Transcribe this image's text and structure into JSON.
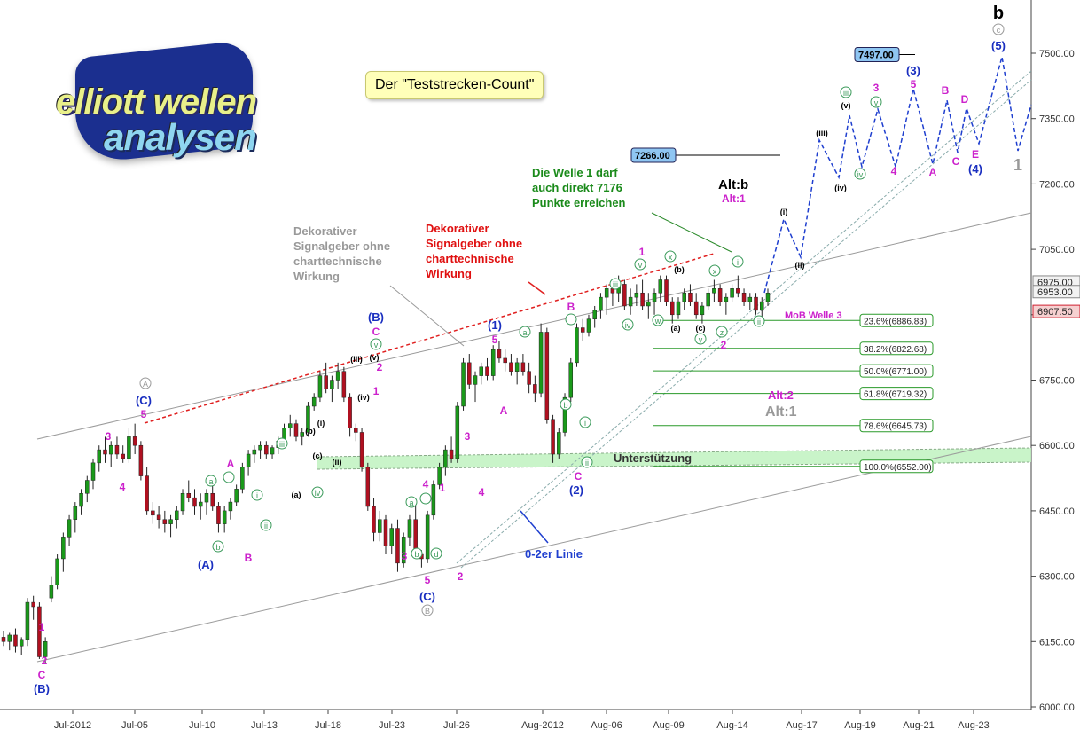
{
  "logo": {
    "line1": "elliott wellen",
    "line2": "analysen"
  },
  "title_box": "Der \"Teststrecken-Count\"",
  "chart_data": {
    "type": "candlestick",
    "title": "Der \"Teststrecken-Count\"",
    "ylim": [
      6000,
      7600
    ],
    "y_ticks": [
      6000,
      6150,
      6300,
      6450,
      6600,
      6750,
      6900,
      7050,
      7200,
      7350,
      7500
    ],
    "y_tick_labels": [
      "6000.00",
      "6150.00",
      "6300.00",
      "6450.00",
      "6600.00",
      "6750.00",
      "6900.00",
      "7050.00",
      "7200.00",
      "7350.00",
      "7500.00"
    ],
    "x_tick_labels": [
      "Jul-2012",
      "Jul-05",
      "Jul-10",
      "Jul-13",
      "Jul-18",
      "Jul-23",
      "Jul-26",
      "Aug-2012",
      "Aug-06",
      "Aug-09",
      "Aug-14",
      "Aug-17",
      "Aug-19",
      "Aug-21",
      "Aug-23"
    ],
    "price_labels": [
      {
        "value": 6975.0,
        "text": "6975.00",
        "color": "#888888"
      },
      {
        "value": 6953.0,
        "text": "6953.00",
        "color": "#888888"
      },
      {
        "value": 6907.5,
        "text": "6907.50",
        "color": "#d02030"
      }
    ],
    "targets": [
      {
        "value": 7497,
        "text": "7497.00"
      },
      {
        "value": 7266,
        "text": "7266.00"
      }
    ],
    "fibonacci": [
      {
        "value": 6886.83,
        "text": "23.6%(6886.83)"
      },
      {
        "value": 6822.68,
        "text": "38.2%(6822.68)"
      },
      {
        "value": 6771.0,
        "text": "50.0%(6771.00)"
      },
      {
        "value": 6719.32,
        "text": "61.8%(6719.32)"
      },
      {
        "value": 6645.73,
        "text": "78.6%(6645.73)"
      },
      {
        "value": 6552.0,
        "text": "100.0%(6552.00)"
      }
    ],
    "annotations": {
      "signal_grey": "Dekorativer Signalgeber ohne charttechnische Wirkung",
      "signal_red": "Dekorativer Signalgeber ohne charttechnische Wirkung",
      "wave1": "Die Welle 1 darf auch direkt 7176 Punkte erreichen",
      "support": "Unterstützung",
      "line02": "0-2er Linie",
      "mob": "MoB Welle 3",
      "altb": "Alt:b",
      "alt1_magenta": "Alt:1",
      "alt2": "Alt:2",
      "alt1_grey": "Alt:1"
    },
    "wave_labels": {
      "b": "b",
      "c_grey": "c",
      "wave5_blue": "(5)",
      "wave3_blue": "(3)",
      "wave4_blue": "(4)",
      "A": "A",
      "B": "B",
      "C": "C",
      "D": "D",
      "E": "E",
      "1": "1",
      "2": "2",
      "3": "3",
      "4": "4",
      "5": "5",
      "(A)": "(A)",
      "(B)": "(B)",
      "(C)": "(C)",
      "(1)": "(1)",
      "(2)": "(2)",
      "i": "i",
      "ii": "ii",
      "iii": "iii",
      "iv": "iv",
      "v": "v",
      "(i)": "(i)",
      "(ii)": "(ii)",
      "(iii)": "(iii)",
      "(iv)": "(iv)",
      "(v)": "(v)",
      "a": "a",
      "b_small": "b",
      "c_small": "c",
      "d": "d",
      "e": "e",
      "w": "w",
      "x": "x",
      "y": "y",
      "z": "z",
      "(a)": "(a)",
      "(b)": "(b)",
      "(c)": "(c)"
    },
    "candles": [
      [
        6160,
        6175,
        6140,
        6150
      ],
      [
        6150,
        6170,
        6130,
        6165
      ],
      [
        6165,
        6180,
        6125,
        6140
      ],
      [
        6140,
        6160,
        6120,
        6155
      ],
      [
        6155,
        6250,
        6140,
        6240
      ],
      [
        6240,
        6255,
        6200,
        6230
      ],
      [
        6230,
        6240,
        6110,
        6115
      ],
      [
        6115,
        6160,
        6100,
        6150
      ],
      [
        6250,
        6300,
        6240,
        6280
      ],
      [
        6280,
        6350,
        6270,
        6340
      ],
      [
        6340,
        6400,
        6310,
        6390
      ],
      [
        6390,
        6440,
        6370,
        6430
      ],
      [
        6430,
        6470,
        6400,
        6460
      ],
      [
        6460,
        6500,
        6440,
        6490
      ],
      [
        6490,
        6530,
        6470,
        6520
      ],
      [
        6520,
        6570,
        6500,
        6560
      ],
      [
        6560,
        6600,
        6540,
        6590
      ],
      [
        6590,
        6620,
        6560,
        6580
      ],
      [
        6580,
        6610,
        6550,
        6600
      ],
      [
        6600,
        6620,
        6570,
        6580
      ],
      [
        6580,
        6600,
        6560,
        6570
      ],
      [
        6570,
        6640,
        6560,
        6620
      ],
      [
        6620,
        6650,
        6580,
        6600
      ],
      [
        6600,
        6610,
        6520,
        6530
      ],
      [
        6530,
        6550,
        6440,
        6450
      ],
      [
        6450,
        6470,
        6420,
        6440
      ],
      [
        6440,
        6460,
        6410,
        6430
      ],
      [
        6430,
        6450,
        6400,
        6420
      ],
      [
        6420,
        6440,
        6390,
        6430
      ],
      [
        6430,
        6460,
        6410,
        6450
      ],
      [
        6450,
        6500,
        6440,
        6490
      ],
      [
        6490,
        6520,
        6470,
        6480
      ],
      [
        6480,
        6500,
        6440,
        6460
      ],
      [
        6460,
        6490,
        6430,
        6470
      ],
      [
        6470,
        6500,
        6440,
        6490
      ],
      [
        6490,
        6520,
        6450,
        6460
      ],
      [
        6460,
        6470,
        6400,
        6420
      ],
      [
        6420,
        6460,
        6400,
        6450
      ],
      [
        6450,
        6480,
        6430,
        6470
      ],
      [
        6470,
        6510,
        6460,
        6500
      ],
      [
        6500,
        6560,
        6490,
        6550
      ],
      [
        6550,
        6590,
        6530,
        6580
      ],
      [
        6580,
        6600,
        6560,
        6590
      ],
      [
        6590,
        6610,
        6570,
        6600
      ],
      [
        6600,
        6610,
        6570,
        6580
      ],
      [
        6580,
        6600,
        6570,
        6595
      ],
      [
        6595,
        6620,
        6580,
        6610
      ],
      [
        6610,
        6650,
        6600,
        6640
      ],
      [
        6640,
        6670,
        6620,
        6650
      ],
      [
        6650,
        6660,
        6610,
        6620
      ],
      [
        6620,
        6640,
        6600,
        6630
      ],
      [
        6630,
        6700,
        6620,
        6690
      ],
      [
        6690,
        6720,
        6680,
        6710
      ],
      [
        6710,
        6770,
        6700,
        6760
      ],
      [
        6760,
        6790,
        6720,
        6730
      ],
      [
        6730,
        6760,
        6700,
        6750
      ],
      [
        6750,
        6790,
        6730,
        6770
      ],
      [
        6770,
        6780,
        6700,
        6710
      ],
      [
        6710,
        6720,
        6620,
        6640
      ],
      [
        6640,
        6650,
        6610,
        6630
      ],
      [
        6630,
        6640,
        6540,
        6550
      ],
      [
        6550,
        6560,
        6450,
        6460
      ],
      [
        6460,
        6480,
        6380,
        6400
      ],
      [
        6400,
        6450,
        6380,
        6430
      ],
      [
        6430,
        6440,
        6350,
        6370
      ],
      [
        6370,
        6420,
        6350,
        6410
      ],
      [
        6410,
        6430,
        6310,
        6330
      ],
      [
        6330,
        6400,
        6320,
        6390
      ],
      [
        6390,
        6440,
        6370,
        6430
      ],
      [
        6430,
        6460,
        6340,
        6350
      ],
      [
        6350,
        6360,
        6320,
        6340
      ],
      [
        6340,
        6450,
        6330,
        6440
      ],
      [
        6440,
        6520,
        6430,
        6510
      ],
      [
        6510,
        6560,
        6500,
        6550
      ],
      [
        6550,
        6600,
        6530,
        6590
      ],
      [
        6590,
        6620,
        6560,
        6570
      ],
      [
        6570,
        6700,
        6560,
        6690
      ],
      [
        6690,
        6800,
        6680,
        6790
      ],
      [
        6790,
        6810,
        6730,
        6740
      ],
      [
        6740,
        6770,
        6700,
        6760
      ],
      [
        6760,
        6790,
        6740,
        6780
      ],
      [
        6780,
        6800,
        6750,
        6760
      ],
      [
        6760,
        6830,
        6750,
        6820
      ],
      [
        6820,
        6840,
        6790,
        6800
      ],
      [
        6800,
        6820,
        6770,
        6790
      ],
      [
        6790,
        6810,
        6760,
        6770
      ],
      [
        6770,
        6800,
        6740,
        6790
      ],
      [
        6790,
        6810,
        6760,
        6770
      ],
      [
        6770,
        6790,
        6720,
        6740
      ],
      [
        6740,
        6760,
        6700,
        6720
      ],
      [
        6720,
        6880,
        6710,
        6860
      ],
      [
        6860,
        6870,
        6650,
        6660
      ],
      [
        6660,
        6670,
        6560,
        6580
      ],
      [
        6580,
        6640,
        6570,
        6630
      ],
      [
        6630,
        6720,
        6620,
        6710
      ],
      [
        6710,
        6800,
        6700,
        6790
      ],
      [
        6790,
        6880,
        6780,
        6870
      ],
      [
        6870,
        6890,
        6840,
        6860
      ],
      [
        6860,
        6900,
        6850,
        6890
      ],
      [
        6890,
        6920,
        6870,
        6910
      ],
      [
        6910,
        6950,
        6890,
        6940
      ],
      [
        6940,
        6970,
        6900,
        6960
      ],
      [
        6960,
        6980,
        6920,
        6950
      ],
      [
        6950,
        6990,
        6930,
        6970
      ],
      [
        6970,
        6980,
        6910,
        6920
      ],
      [
        6920,
        6960,
        6900,
        6940
      ],
      [
        6940,
        6970,
        6920,
        6950
      ],
      [
        6950,
        6980,
        6910,
        6920
      ],
      [
        6920,
        6950,
        6890,
        6930
      ],
      [
        6930,
        6960,
        6900,
        6950
      ],
      [
        6950,
        6990,
        6930,
        6980
      ],
      [
        6980,
        6990,
        6920,
        6930
      ],
      [
        6930,
        6940,
        6880,
        6900
      ],
      [
        6900,
        6940,
        6890,
        6930
      ],
      [
        6930,
        6960,
        6910,
        6950
      ],
      [
        6950,
        6970,
        6920,
        6930
      ],
      [
        6930,
        6950,
        6890,
        6900
      ],
      [
        6900,
        6930,
        6880,
        6920
      ],
      [
        6920,
        6960,
        6910,
        6950
      ],
      [
        6950,
        6980,
        6930,
        6960
      ],
      [
        6960,
        6970,
        6920,
        6930
      ],
      [
        6930,
        6950,
        6900,
        6940
      ],
      [
        6940,
        6970,
        6930,
        6960
      ],
      [
        6960,
        6990,
        6940,
        6950
      ],
      [
        6950,
        6960,
        6920,
        6930
      ],
      [
        6930,
        6950,
        6910,
        6940
      ],
      [
        6940,
        6950,
        6900,
        6910
      ],
      [
        6910,
        6940,
        6890,
        6930
      ],
      [
        6930,
        6960,
        6920,
        6950
      ]
    ]
  }
}
